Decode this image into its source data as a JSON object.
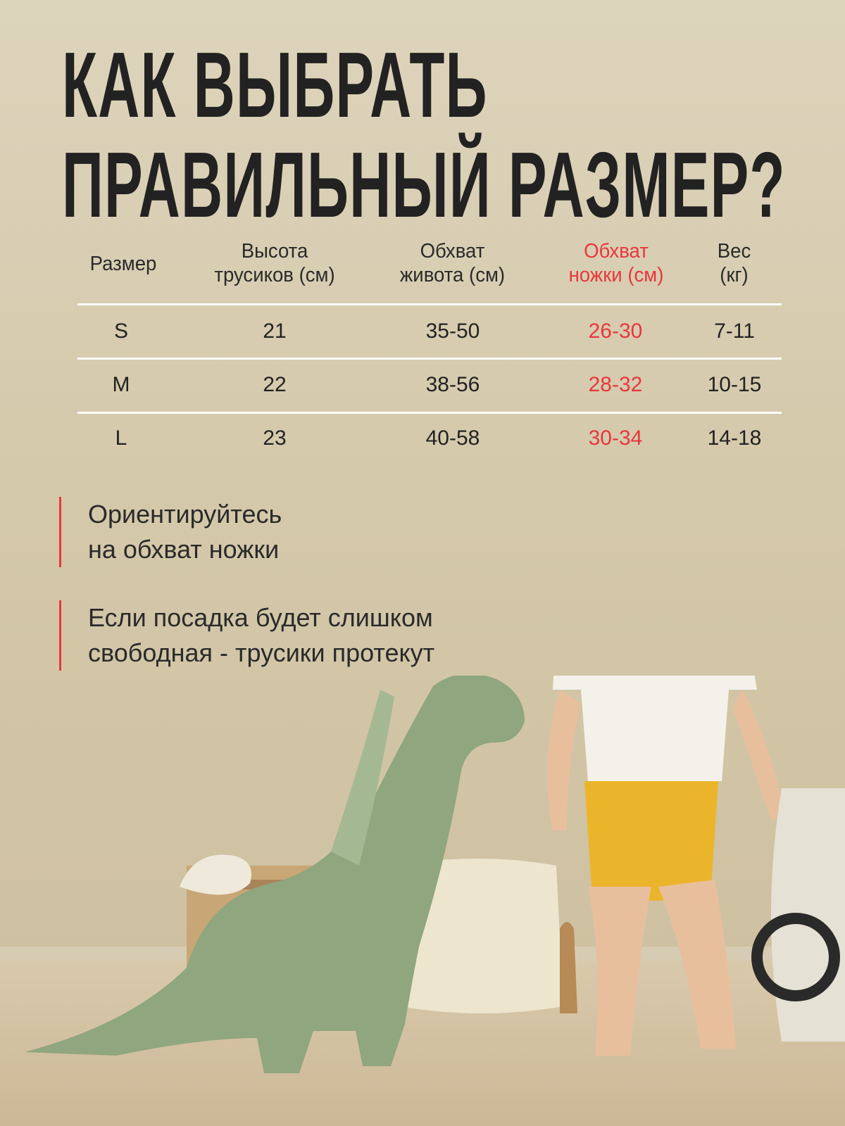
{
  "title": {
    "line1": "КАК ВЫБРАТЬ",
    "line2": "ПРАВИЛЬНЫЙ РАЗМЕР?"
  },
  "table": {
    "headers": [
      {
        "line1": "Размер",
        "line2": ""
      },
      {
        "line1": "Высота",
        "line2": "трусиков (см)"
      },
      {
        "line1": "Обхват",
        "line2": "живота (см)"
      },
      {
        "line1": "Обхват",
        "line2": "ножки (см)"
      },
      {
        "line1": "Вес",
        "line2": "(кг)"
      }
    ],
    "rows": [
      [
        "S",
        "21",
        "35-50",
        "26-30",
        "7-11"
      ],
      [
        "M",
        "22",
        "38-56",
        "28-32",
        "10-15"
      ],
      [
        "L",
        "23",
        "40-58",
        "30-34",
        "14-18"
      ]
    ],
    "highlight_column": 3
  },
  "notes": [
    {
      "line1": "Ориентируйтесь",
      "line2": "на обхват ножки"
    },
    {
      "line1": "Если посадка будет слишком",
      "line2": "свободная - трусики протекут"
    }
  ],
  "colors": {
    "accent": "#e8373d",
    "text": "#222222",
    "background": "#d4c8aa"
  },
  "photo": {
    "description_icons": [
      "dinosaur-plush",
      "baby",
      "giraffe-toy",
      "ride-on-car",
      "wooden-crate",
      "knit-blanket"
    ]
  }
}
